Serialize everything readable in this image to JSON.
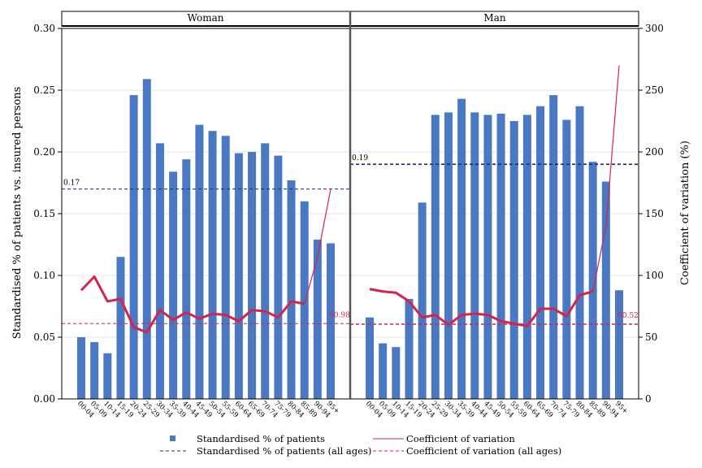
{
  "chart_data": {
    "type": "bar",
    "panels": [
      {
        "title": "Woman",
        "categories": [
          "00-04",
          "05-09",
          "10-14",
          "15-19",
          "20-24",
          "25-29",
          "30-34",
          "35-39",
          "40-44",
          "45-49",
          "50-54",
          "55-59",
          "60-64",
          "65-69",
          "70-74",
          "75-79",
          "80-84",
          "85-89",
          "90-94",
          "95+"
        ],
        "series": [
          {
            "name": "Standardised % of patients",
            "type": "bar",
            "axis": "left",
            "values": [
              0.05,
              0.046,
              0.037,
              0.115,
              0.246,
              0.259,
              0.207,
              0.184,
              0.194,
              0.222,
              0.217,
              0.213,
              0.199,
              0.2,
              0.207,
              0.197,
              0.177,
              0.16,
              0.129,
              0.126
            ]
          },
          {
            "name": "Coefficient of variation",
            "type": "line",
            "axis": "right",
            "values": [
              88,
              99,
              79,
              81,
              58,
              54,
              72,
              64,
              70,
              65,
              69,
              68,
              63,
              72,
              71,
              66,
              79,
              77,
              115,
              170
            ]
          }
        ],
        "ref_pct": {
          "value": 0.17,
          "label": "0.17"
        },
        "ref_cv": {
          "value": 60.98,
          "label": "60.98"
        }
      },
      {
        "title": "Man",
        "categories": [
          "00-04",
          "05-09",
          "10-14",
          "15-19",
          "20-24",
          "25-29",
          "30-34",
          "35-39",
          "40-44",
          "45-49",
          "50-54",
          "55-59",
          "60-64",
          "65-69",
          "70-74",
          "75-79",
          "80-84",
          "85-89",
          "90-94",
          "95+"
        ],
        "series": [
          {
            "name": "Standardised % of patients",
            "type": "bar",
            "axis": "left",
            "values": [
              0.066,
              0.045,
              0.042,
              0.081,
              0.159,
              0.23,
              0.232,
              0.243,
              0.232,
              0.23,
              0.231,
              0.225,
              0.23,
              0.237,
              0.246,
              0.226,
              0.237,
              0.192,
              0.176,
              0.088
            ]
          },
          {
            "name": "Coefficient of variation",
            "type": "line",
            "axis": "right",
            "values": [
              89,
              87,
              86,
              79,
              66,
              68,
              60,
              68,
              69,
              68,
              63,
              61,
              59,
              73,
              73,
              67,
              84,
              87,
              140,
              270
            ]
          }
        ],
        "ref_pct": {
          "value": 0.19,
          "label": "0.19"
        },
        "ref_cv": {
          "value": 60.52,
          "label": "60.52"
        }
      }
    ],
    "y_left": {
      "label": "Standardised % of patients vs. insured persons",
      "range": [
        0,
        0.3
      ],
      "ticks": [
        "0.00",
        "0.05",
        "0.10",
        "0.15",
        "0.20",
        "0.25",
        "0.30"
      ]
    },
    "y_right": {
      "label": "Coefficient of variation (%)",
      "range": [
        0,
        300
      ],
      "ticks": [
        "0",
        "50",
        "100",
        "150",
        "200",
        "250",
        "300"
      ]
    },
    "grid": true,
    "legend": {
      "position": "bottom",
      "items": [
        {
          "label": "Standardised % of patients",
          "marker": "square",
          "color": "#4a79c4"
        },
        {
          "label": "Coefficient of variation",
          "marker": "solid-line",
          "color": "#d6234a"
        },
        {
          "label": "Standardised % of patients (all ages)",
          "marker": "dashed-line",
          "color": "#1e2a7a"
        },
        {
          "label": "Coefficient of variation (all ages)",
          "marker": "dashed-line",
          "color": "#d6234a"
        }
      ]
    },
    "colors": {
      "bar": "#4a79c4",
      "cv_line": "#d6234a",
      "ref_pct": "#1e2a7a",
      "ref_cv": "#d6234a",
      "grid": "#e6e6e6"
    }
  }
}
